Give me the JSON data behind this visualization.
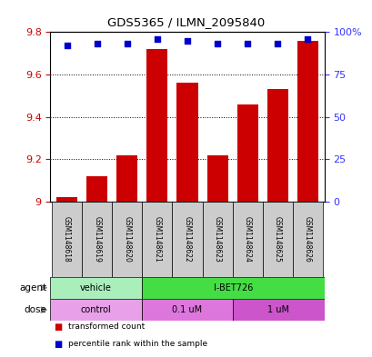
{
  "title": "GDS5365 / ILMN_2095840",
  "samples": [
    "GSM1148618",
    "GSM1148619",
    "GSM1148620",
    "GSM1148621",
    "GSM1148622",
    "GSM1148623",
    "GSM1148624",
    "GSM1148625",
    "GSM1148626"
  ],
  "transformed_counts": [
    9.02,
    9.12,
    9.22,
    9.72,
    9.56,
    9.22,
    9.46,
    9.53,
    9.76
  ],
  "percentile_ranks": [
    92,
    93,
    93,
    96,
    95,
    93,
    93,
    93,
    96
  ],
  "ylim_left": [
    9.0,
    9.8
  ],
  "ylim_right": [
    0,
    100
  ],
  "yticks_left": [
    9.0,
    9.2,
    9.4,
    9.6,
    9.8
  ],
  "ytick_labels_left": [
    "9",
    "9.2",
    "9.4",
    "9.6",
    "9.8"
  ],
  "yticks_right": [
    0,
    25,
    50,
    75,
    100
  ],
  "ytick_labels_right": [
    "0",
    "25",
    "50",
    "75",
    "100%"
  ],
  "bar_color": "#cc0000",
  "dot_color": "#0000cc",
  "agent_groups": [
    {
      "label": "vehicle",
      "start": 0,
      "end": 3,
      "color": "#aaeebb"
    },
    {
      "label": "I-BET726",
      "start": 3,
      "end": 9,
      "color": "#44dd44"
    }
  ],
  "dose_groups": [
    {
      "label": "control",
      "start": 0,
      "end": 3,
      "color": "#e8a0e8"
    },
    {
      "label": "0.1 uM",
      "start": 3,
      "end": 6,
      "color": "#dd77dd"
    },
    {
      "label": "1 uM",
      "start": 6,
      "end": 9,
      "color": "#cc55cc"
    }
  ],
  "legend_items": [
    {
      "color": "#cc0000",
      "label": "transformed count"
    },
    {
      "color": "#0000cc",
      "label": "percentile rank within the sample"
    }
  ],
  "row_label_agent": "agent",
  "row_label_dose": "dose",
  "background_color": "#ffffff",
  "tick_label_color_left": "#cc0000",
  "tick_label_color_right": "#3333ff",
  "bar_width": 0.7
}
